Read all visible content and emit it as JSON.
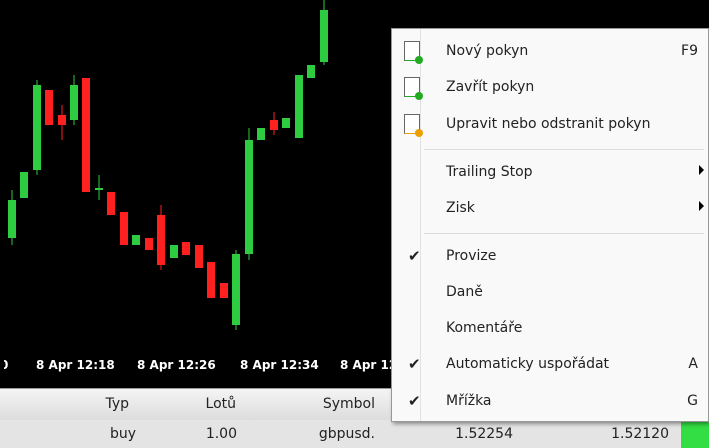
{
  "chart": {
    "time_labels": [
      "0",
      "8 Apr 12:18",
      "8 Apr 12:26",
      "8 Apr 12:34",
      "8 Apr 12"
    ]
  },
  "table": {
    "headers": [
      "Typ",
      "Lotů",
      "Symbol"
    ],
    "row": [
      "buy",
      "1.00",
      "gbpusd.",
      "1.52254",
      "1.52120"
    ]
  },
  "menu": {
    "items": [
      {
        "label": "Nový pokyn",
        "shortcut": "F9",
        "checked": false
      },
      {
        "label": "Zavřít pokyn",
        "checked": false
      },
      {
        "label": "Upravit nebo odstranit pokyn",
        "checked": false
      },
      {
        "label": "Trailing Stop",
        "checked": false,
        "submenu": true
      },
      {
        "label": "Zisk",
        "checked": false,
        "submenu": true
      },
      {
        "label": "Provize",
        "checked": true
      },
      {
        "label": "Daně",
        "checked": false
      },
      {
        "label": "Komentáře",
        "checked": false
      },
      {
        "label": "Automaticky uspořádat",
        "shortcut": "A",
        "checked": true
      },
      {
        "label": "Mřížka",
        "shortcut": "G",
        "checked": true
      }
    ]
  }
}
